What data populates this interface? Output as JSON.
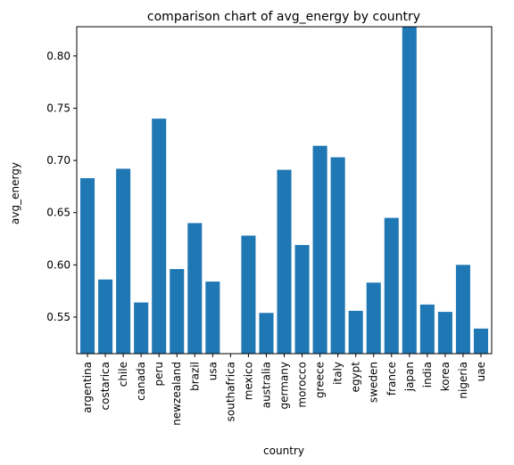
{
  "chart_data": {
    "type": "bar",
    "title": "comparison chart of avg_energy by country",
    "xlabel": "country",
    "ylabel": "avg_energy",
    "categories": [
      "argentina",
      "costarica",
      "chile",
      "canada",
      "peru",
      "newzealand",
      "brazil",
      "usa",
      "southafrica",
      "mexico",
      "australia",
      "germany",
      "morocco",
      "greece",
      "italy",
      "egypt",
      "sweden",
      "france",
      "japan",
      "india",
      "korea",
      "nigeria",
      "uae"
    ],
    "values": [
      0.683,
      0.586,
      0.692,
      0.564,
      0.74,
      0.596,
      0.64,
      0.584,
      0.514,
      0.628,
      0.554,
      0.691,
      0.619,
      0.714,
      0.703,
      0.556,
      0.583,
      0.645,
      0.828,
      0.562,
      0.555,
      0.6,
      0.539
    ],
    "ylim": [
      0.515,
      0.828
    ],
    "yticks": [
      0.55,
      0.6,
      0.65,
      0.7,
      0.75,
      0.8
    ],
    "ytick_labels": [
      "0.55",
      "0.60",
      "0.65",
      "0.70",
      "0.75",
      "0.80"
    ],
    "bar_color": "#1f77b4",
    "grid": false,
    "legend": "none"
  }
}
